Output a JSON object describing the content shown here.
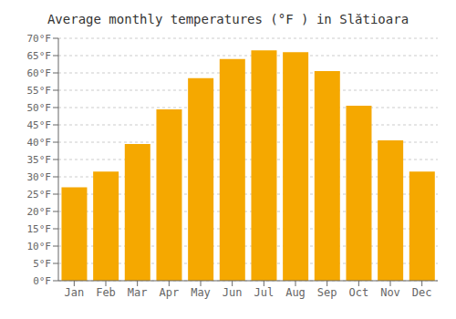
{
  "chart_data": {
    "type": "bar",
    "title": "Average monthly temperatures (°F ) in Slătioara",
    "categories": [
      "Jan",
      "Feb",
      "Mar",
      "Apr",
      "May",
      "Jun",
      "Jul",
      "Aug",
      "Sep",
      "Oct",
      "Nov",
      "Dec"
    ],
    "values": [
      27.0,
      31.5,
      39.5,
      49.5,
      58.5,
      64.0,
      66.5,
      66.0,
      60.5,
      50.5,
      40.5,
      31.5
    ],
    "color": "#F5A800",
    "ylim": [
      0,
      70
    ],
    "yticks": [
      {
        "value": 0,
        "label": "0°F"
      },
      {
        "value": 5,
        "label": "5°F"
      },
      {
        "value": 10,
        "label": "10°F"
      },
      {
        "value": 15,
        "label": "15°F"
      },
      {
        "value": 20,
        "label": "20°F"
      },
      {
        "value": 25,
        "label": "25°F"
      },
      {
        "value": 30,
        "label": "30°F"
      },
      {
        "value": 35,
        "label": "35°F"
      },
      {
        "value": 40,
        "label": "40°F"
      },
      {
        "value": 45,
        "label": "45°F"
      },
      {
        "value": 50,
        "label": "50°F"
      },
      {
        "value": 55,
        "label": "55°F"
      },
      {
        "value": 60,
        "label": "60°F"
      },
      {
        "value": 65,
        "label": "65°F"
      },
      {
        "value": 70,
        "label": "70°F"
      }
    ],
    "grid": true
  }
}
